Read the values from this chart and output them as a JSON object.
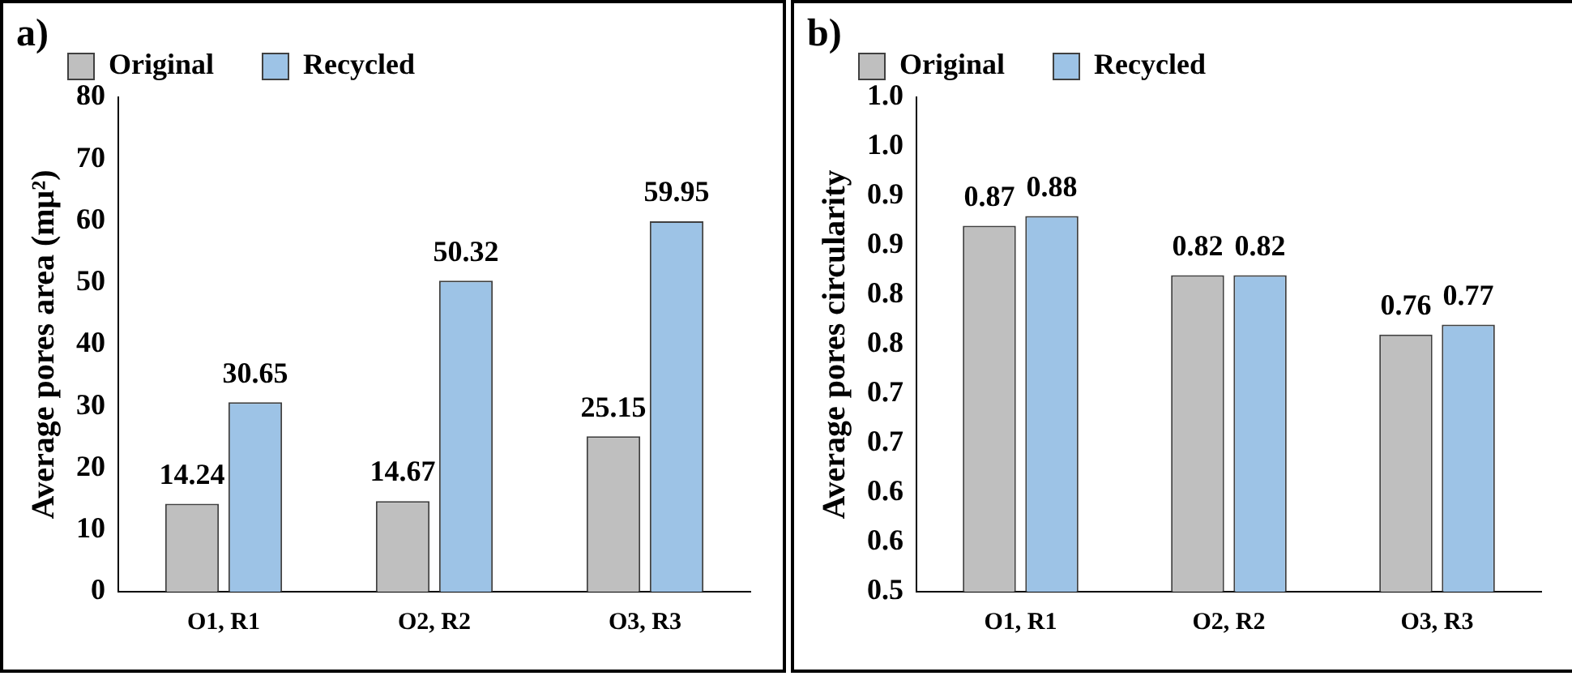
{
  "chart_data": [
    {
      "type": "bar",
      "annotations": [
        "a)"
      ],
      "ylabel": "Average pores area (mμ²)",
      "categories": [
        "O1, R1",
        "O2, R2",
        "O3, R3"
      ],
      "series": [
        {
          "name": "Original",
          "color": "#bfbfbf",
          "values": [
            14.24,
            14.67,
            25.15
          ]
        },
        {
          "name": "Recycled",
          "color": "#9dc3e6",
          "values": [
            30.65,
            50.32,
            59.95
          ]
        }
      ],
      "ylim": [
        0,
        80
      ],
      "yticks": [
        0,
        10,
        20,
        30,
        40,
        50,
        60,
        70,
        80
      ],
      "grid": false,
      "legend": "top",
      "data_labels": true
    },
    {
      "type": "bar",
      "annotations": [
        "b)"
      ],
      "ylabel": "Average pores circularity",
      "categories": [
        "O1, R1",
        "O2, R2",
        "O3, R3"
      ],
      "series": [
        {
          "name": "Original",
          "color": "#bfbfbf",
          "values": [
            0.87,
            0.82,
            0.76
          ]
        },
        {
          "name": "Recycled",
          "color": "#9dc3e6",
          "values": [
            0.88,
            0.82,
            0.77
          ]
        }
      ],
      "ylim": [
        0.5,
        1.0
      ],
      "yticks": [
        {
          "value": 0.5,
          "label": "0.5"
        },
        {
          "value": 0.55,
          "label": "0.6"
        },
        {
          "value": 0.6,
          "label": "0.6"
        },
        {
          "value": 0.65,
          "label": "0.7"
        },
        {
          "value": 0.7,
          "label": "0.7"
        },
        {
          "value": 0.75,
          "label": "0.8"
        },
        {
          "value": 0.8,
          "label": "0.8"
        },
        {
          "value": 0.85,
          "label": "0.9"
        },
        {
          "value": 0.9,
          "label": "0.9"
        },
        {
          "value": 0.95,
          "label": "1.0"
        },
        {
          "value": 1.0,
          "label": "1.0"
        }
      ],
      "grid": false,
      "legend": "top",
      "data_labels": true
    }
  ]
}
